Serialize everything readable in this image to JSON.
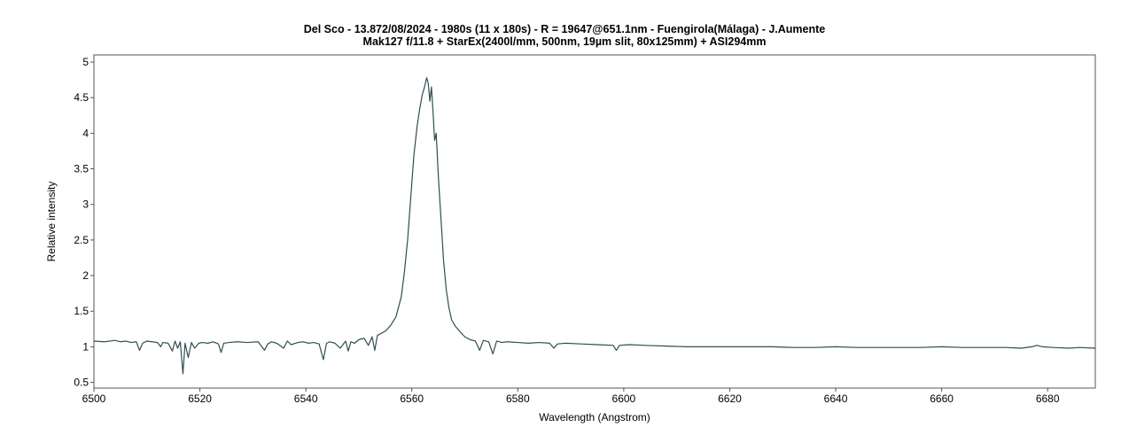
{
  "chart_data": {
    "type": "line",
    "title": "Del Sco - 13.872/08/2024 - 1980s (11 x 180s) - R = 19647@651.1nm - Fuengirola(Málaga) - J.Aumente",
    "subtitle": "Mak127 f/11.8 + StarEx(2400l/mm, 500nm, 19µm slit, 80x125mm) + ASI294mm",
    "xlabel": "Wavelength (Angstrom)",
    "ylabel": "Relative intensity",
    "xlim": [
      6500,
      6689
    ],
    "ylim": [
      0.42,
      5.1
    ],
    "x_ticks": [
      6500,
      6520,
      6540,
      6560,
      6580,
      6600,
      6620,
      6640,
      6660,
      6680
    ],
    "y_ticks": [
      0.5,
      1,
      1.5,
      2,
      2.5,
      3,
      3.5,
      4,
      4.5,
      5
    ],
    "x_tick_labels": [
      "6500",
      "6520",
      "6540",
      "6560",
      "6580",
      "6600",
      "6620",
      "6640",
      "6660",
      "6680"
    ],
    "y_tick_labels": [
      "0.5",
      "1",
      "1.5",
      "2",
      "2.5",
      "3",
      "3.5",
      "4",
      "4.5",
      "5"
    ],
    "grid": false,
    "legend": "none",
    "line_color": "#2f4f4f",
    "series": [
      {
        "x": [
          6500,
          6502,
          6504,
          6505,
          6506,
          6507,
          6508,
          6508.6,
          6509.2,
          6510,
          6511,
          6512,
          6512.6,
          6513,
          6514,
          6514.8,
          6515.3,
          6515.8,
          6516.3,
          6516.8,
          6517.2,
          6517.8,
          6518.4,
          6519,
          6519.8,
          6520.5,
          6521.5,
          6522.5,
          6523.5,
          6524,
          6524.5,
          6525.5,
          6527,
          6529,
          6531,
          6532.2,
          6532.8,
          6533.5,
          6534.5,
          6535.8,
          6536.5,
          6537.2,
          6538.5,
          6539.5,
          6540.5,
          6541.5,
          6542.5,
          6543.3,
          6543.9,
          6544.5,
          6545.5,
          6546.5,
          6547.5,
          6548,
          6548.5,
          6549.2,
          6550,
          6551,
          6551.8,
          6552.5,
          6553,
          6553.5,
          6554,
          6555,
          6556,
          6557,
          6558,
          6558.6,
          6559.2,
          6559.8,
          6560.4,
          6561,
          6561.5,
          6562,
          6562.4,
          6562.8,
          6563.1,
          6563.4,
          6563.7,
          6564.0,
          6564.3,
          6564.6,
          6565,
          6565.5,
          6566,
          6566.5,
          6567,
          6567.5,
          6568.2,
          6569,
          6570,
          6571,
          6572,
          6572.8,
          6573.5,
          6574.5,
          6575.3,
          6576,
          6577,
          6578,
          6580,
          6582,
          6584,
          6586,
          6586.8,
          6587.5,
          6589,
          6592,
          6595,
          6598,
          6598.6,
          6599.2,
          6601,
          6604,
          6608,
          6612,
          6616,
          6620,
          6624,
          6628,
          6632,
          6636,
          6640,
          6644,
          6648,
          6652,
          6656,
          6660,
          6664,
          6668,
          6672,
          6675,
          6677,
          6678,
          6679,
          6681,
          6684,
          6686,
          6689
        ],
        "y": [
          1.08,
          1.07,
          1.09,
          1.07,
          1.08,
          1.06,
          1.07,
          0.95,
          1.05,
          1.08,
          1.07,
          1.06,
          1.0,
          1.06,
          1.05,
          0.94,
          1.08,
          0.98,
          1.07,
          0.62,
          1.05,
          0.85,
          1.06,
          0.98,
          1.05,
          1.06,
          1.05,
          1.07,
          1.04,
          0.92,
          1.05,
          1.06,
          1.07,
          1.06,
          1.07,
          0.95,
          1.04,
          1.07,
          1.05,
          0.98,
          1.08,
          1.03,
          1.06,
          1.07,
          1.05,
          1.06,
          1.04,
          0.82,
          1.05,
          1.07,
          1.05,
          0.98,
          1.08,
          0.94,
          1.07,
          1.05,
          1.1,
          1.12,
          1.02,
          1.14,
          0.95,
          1.16,
          1.18,
          1.22,
          1.3,
          1.42,
          1.7,
          2.05,
          2.5,
          3.1,
          3.7,
          4.1,
          4.35,
          4.55,
          4.65,
          4.78,
          4.7,
          4.45,
          4.65,
          4.3,
          3.9,
          4.0,
          3.4,
          2.8,
          2.2,
          1.8,
          1.55,
          1.38,
          1.29,
          1.22,
          1.14,
          1.1,
          1.08,
          0.95,
          1.09,
          1.07,
          0.9,
          1.08,
          1.06,
          1.07,
          1.06,
          1.05,
          1.06,
          1.05,
          0.98,
          1.04,
          1.05,
          1.04,
          1.03,
          1.02,
          0.95,
          1.02,
          1.03,
          1.02,
          1.01,
          1.0,
          1.0,
          1.0,
          1.0,
          1.0,
          0.99,
          0.99,
          1.0,
          0.99,
          0.99,
          0.99,
          0.99,
          1.0,
          0.99,
          0.99,
          0.99,
          0.98,
          1.0,
          1.02,
          1.0,
          0.99,
          0.98,
          0.99,
          0.98
        ]
      }
    ]
  }
}
